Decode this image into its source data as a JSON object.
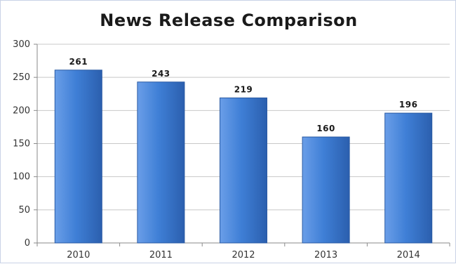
{
  "chart_data": {
    "type": "bar",
    "title": "News Release Comparison",
    "categories": [
      "2010",
      "2011",
      "2012",
      "2013",
      "2014"
    ],
    "values": [
      261,
      243,
      219,
      160,
      196
    ],
    "data_labels": [
      "261",
      "243",
      "219",
      "160",
      "196"
    ],
    "y_ticks": [
      0,
      50,
      100,
      150,
      200,
      250,
      300
    ],
    "xlabel": "",
    "ylabel": "",
    "ylim": [
      0,
      300
    ],
    "grid": true,
    "legend": "none"
  },
  "colors": {
    "bar_top": "#6a9ee8",
    "bar_mid": "#3f7fd6",
    "bar_bottom": "#2b5fae",
    "bar_stroke": "#2a5aa3",
    "grid": "#c8c8c8",
    "axis": "#8a8a8a"
  }
}
